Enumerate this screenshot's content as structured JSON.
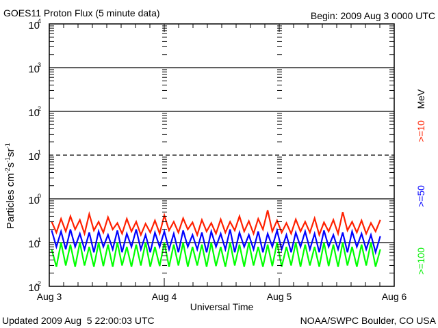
{
  "chart_data": {
    "type": "line",
    "title": "GOES11 Proton Flux (5 minute data)",
    "begin": "Begin: 2009 Aug 3 0000 UTC",
    "xlabel": "Universal Time",
    "ylabel": "Particles cm",
    "ylabel_parts": [
      "Particles cm",
      "-2",
      "s",
      "-1",
      "sr",
      "-1"
    ],
    "yscale": "log",
    "ylim": [
      0.01,
      10000
    ],
    "yticks": [
      {
        "base": "10",
        "exp": "4",
        "value": 10000
      },
      {
        "base": "10",
        "exp": "3",
        "value": 1000
      },
      {
        "base": "10",
        "exp": "2",
        "value": 100
      },
      {
        "base": "10",
        "exp": "1",
        "value": 10
      },
      {
        "base": "10",
        "exp": "0",
        "value": 1
      },
      {
        "base": "10",
        "exp": "-1",
        "value": 0.1
      },
      {
        "base": "10",
        "exp": "-2",
        "value": 0.01
      }
    ],
    "xlim_hours": [
      0,
      72
    ],
    "xticks": [
      {
        "label": "Aug 3",
        "hour": 0
      },
      {
        "label": "Aug 4",
        "hour": 24
      },
      {
        "label": "Aug 5",
        "hour": 48
      },
      {
        "label": "Aug 6",
        "hour": 72
      }
    ],
    "x_hours_step": 1,
    "series": [
      {
        "name": ">=10",
        "unit": "MeV",
        "color": "#ff2000",
        "values": [
          0.3,
          0.17,
          0.35,
          0.18,
          0.4,
          0.2,
          0.33,
          0.16,
          0.45,
          0.19,
          0.3,
          0.17,
          0.38,
          0.2,
          0.28,
          0.16,
          0.35,
          0.18,
          0.3,
          0.15,
          0.27,
          0.17,
          0.32,
          0.16,
          0.42,
          0.19,
          0.3,
          0.17,
          0.36,
          0.2,
          0.29,
          0.15,
          0.33,
          0.18,
          0.28,
          0.16,
          0.34,
          0.17,
          0.3,
          0.19,
          0.4,
          0.18,
          0.31,
          0.16,
          0.35,
          0.2,
          0.55,
          0.18,
          0.32,
          0.17,
          0.28,
          0.16,
          0.34,
          0.18,
          0.3,
          0.17,
          0.36,
          0.15,
          0.29,
          0.18,
          0.33,
          0.16,
          0.5,
          0.19,
          0.3,
          0.17,
          0.32,
          0.16,
          0.28,
          0.18,
          0.33
        ]
      },
      {
        "name": ">=50",
        "unit": "MeV",
        "color": "#0000ff",
        "values": [
          0.19,
          0.08,
          0.18,
          0.07,
          0.2,
          0.08,
          0.16,
          0.07,
          0.17,
          0.06,
          0.18,
          0.08,
          0.15,
          0.07,
          0.19,
          0.06,
          0.16,
          0.08,
          0.2,
          0.07,
          0.15,
          0.06,
          0.17,
          0.08,
          0.18,
          0.07,
          0.16,
          0.06,
          0.19,
          0.08,
          0.15,
          0.07,
          0.17,
          0.06,
          0.18,
          0.08,
          0.16,
          0.07,
          0.2,
          0.06,
          0.17,
          0.08,
          0.15,
          0.07,
          0.18,
          0.06,
          0.16,
          0.08,
          0.19,
          0.07,
          0.15,
          0.06,
          0.17,
          0.08,
          0.18,
          0.07,
          0.16,
          0.06,
          0.19,
          0.08,
          0.15,
          0.07,
          0.17,
          0.06,
          0.18,
          0.08,
          0.16,
          0.07,
          0.15,
          0.06,
          0.14
        ]
      },
      {
        "name": ">=100",
        "unit": "MeV",
        "color": "#00ff00",
        "values": [
          0.07,
          0.028,
          0.1,
          0.03,
          0.09,
          0.028,
          0.1,
          0.03,
          0.08,
          0.028,
          0.1,
          0.029,
          0.09,
          0.028,
          0.1,
          0.03,
          0.08,
          0.028,
          0.09,
          0.03,
          0.1,
          0.028,
          0.08,
          0.029,
          0.1,
          0.028,
          0.09,
          0.03,
          0.1,
          0.028,
          0.08,
          0.03,
          0.09,
          0.028,
          0.1,
          0.029,
          0.08,
          0.028,
          0.1,
          0.03,
          0.09,
          0.028,
          0.1,
          0.03,
          0.08,
          0.028,
          0.09,
          0.029,
          0.1,
          0.028,
          0.08,
          0.03,
          0.1,
          0.028,
          0.09,
          0.03,
          0.08,
          0.028,
          0.1,
          0.029,
          0.09,
          0.028,
          0.1,
          0.03,
          0.08,
          0.028,
          0.09,
          0.03,
          0.1,
          0.028,
          0.07
        ]
      }
    ],
    "unit_label": "MeV",
    "grid": "decades",
    "legend": "right"
  },
  "footer": {
    "updated": "Updated 2009 Aug  5 22:00:03 UTC",
    "credit": "NOAA/SWPC Boulder, CO USA"
  }
}
